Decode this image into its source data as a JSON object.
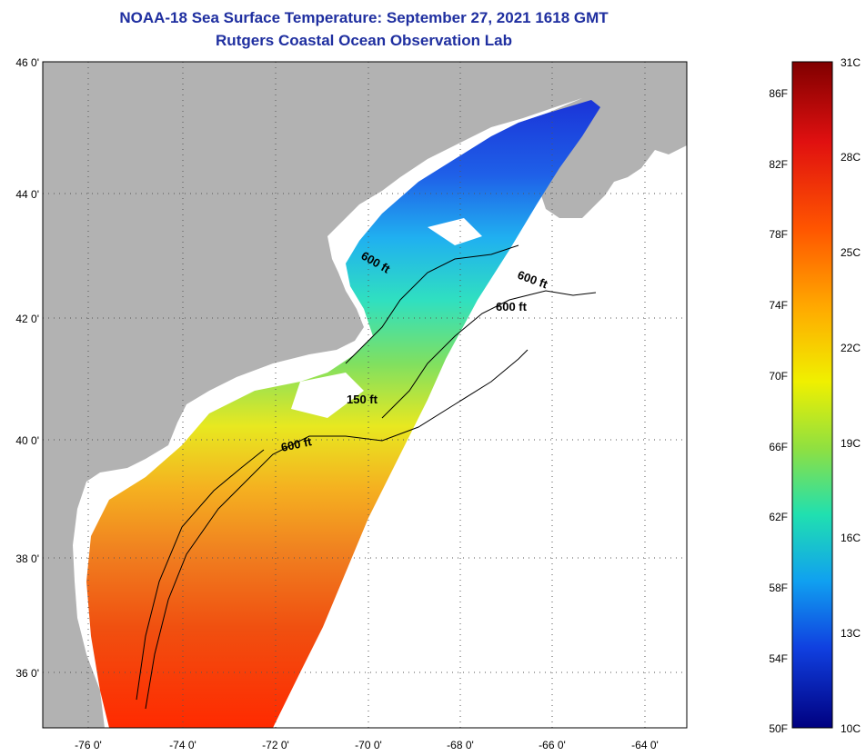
{
  "header": {
    "title_line1": "NOAA-18 Sea Surface Temperature:  September 27, 2021 1618 GMT",
    "title_line2": "Rutgers Coastal Ocean Observation Lab"
  },
  "map": {
    "lat_labels": [
      "46 0'",
      "44 0'",
      "42 0'",
      "40 0'",
      "38 0'",
      "36 0'"
    ],
    "lon_labels": [
      "-76 0'",
      "-74 0'",
      "-72 0'",
      "-70 0'",
      "-68 0'",
      "-66 0'",
      "-64 0'"
    ],
    "isobath_labels": [
      "600 ft",
      "600 ft",
      "600 ft",
      "150 ft",
      "600 ft"
    ],
    "colors": {
      "land": "#b2b2b2",
      "grid": "#555555",
      "contour": "#000000"
    }
  },
  "colorbar": {
    "fahrenheit_labels": [
      "86F",
      "82F",
      "78F",
      "74F",
      "70F",
      "66F",
      "62F",
      "58F",
      "54F",
      "50F"
    ],
    "celsius_labels": [
      "31C",
      "28C",
      "25C",
      "22C",
      "19C",
      "16C",
      "13C",
      "10C"
    ]
  }
}
